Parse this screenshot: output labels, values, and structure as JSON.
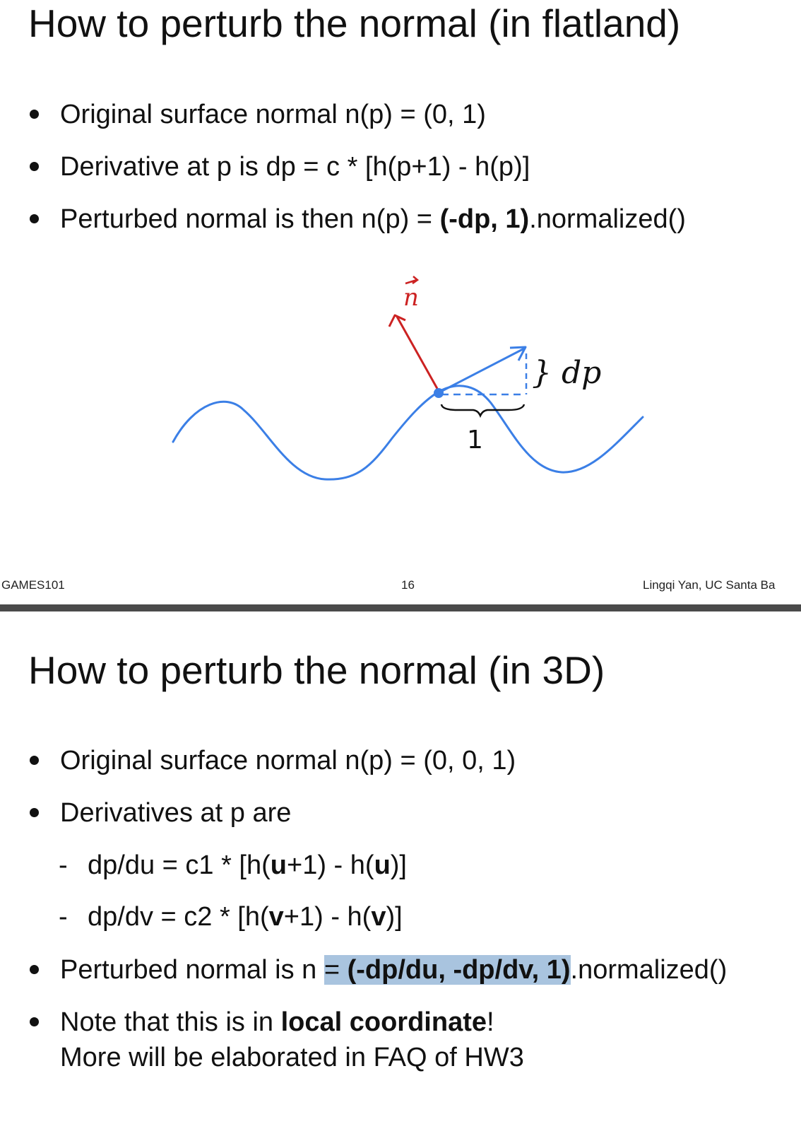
{
  "slide1": {
    "title": "How to perturb the normal (in flatland)",
    "bullets": [
      "Original surface normal n(p) = (0, 1)",
      "Derivative at p is dp = c * [h(p+1) - h(p)]"
    ],
    "bullet3": {
      "prefix": "Perturbed normal is then n(p) = ",
      "bold": "(-dp, 1)",
      "suffix": ".normalized()"
    },
    "diagram": {
      "normal_label": "n",
      "step_label": "1",
      "rise_label": "} dp",
      "colors": {
        "curve": "#3b7fe6",
        "normal": "#cc2222",
        "ink": "#111111"
      }
    },
    "footer": {
      "left": "GAMES101",
      "page": "16",
      "right": "Lingqi Yan, UC Santa Ba"
    }
  },
  "slide2": {
    "title": "How to perturb the normal (in 3D)",
    "bullet1": "Original surface normal n(p) = (0, 0, 1)",
    "bullet2": "Derivatives at p are",
    "sub1": {
      "dash": "-",
      "a": "dp/du = c1 * [h(",
      "b": "u",
      "c": "+1) - h(",
      "d": "u",
      "e": ")]"
    },
    "sub2": {
      "dash": "-",
      "a": "dp/dv = c2 * [h(",
      "b": "v",
      "c": "+1) - h(",
      "d": "v",
      "e": ")]"
    },
    "bullet3": {
      "prefix": "Perturbed normal is n ",
      "eq": "=",
      "space": " ",
      "bold": "(-dp/du, -dp/dv, 1)",
      "suffix": ".normalized()"
    },
    "bullet4": {
      "prefix": "Note that this is in ",
      "bold": "local coordinate",
      "suffix": "!",
      "line2": "More will be elaborated in FAQ of HW3"
    },
    "highlight_color": "#a9c4df"
  }
}
